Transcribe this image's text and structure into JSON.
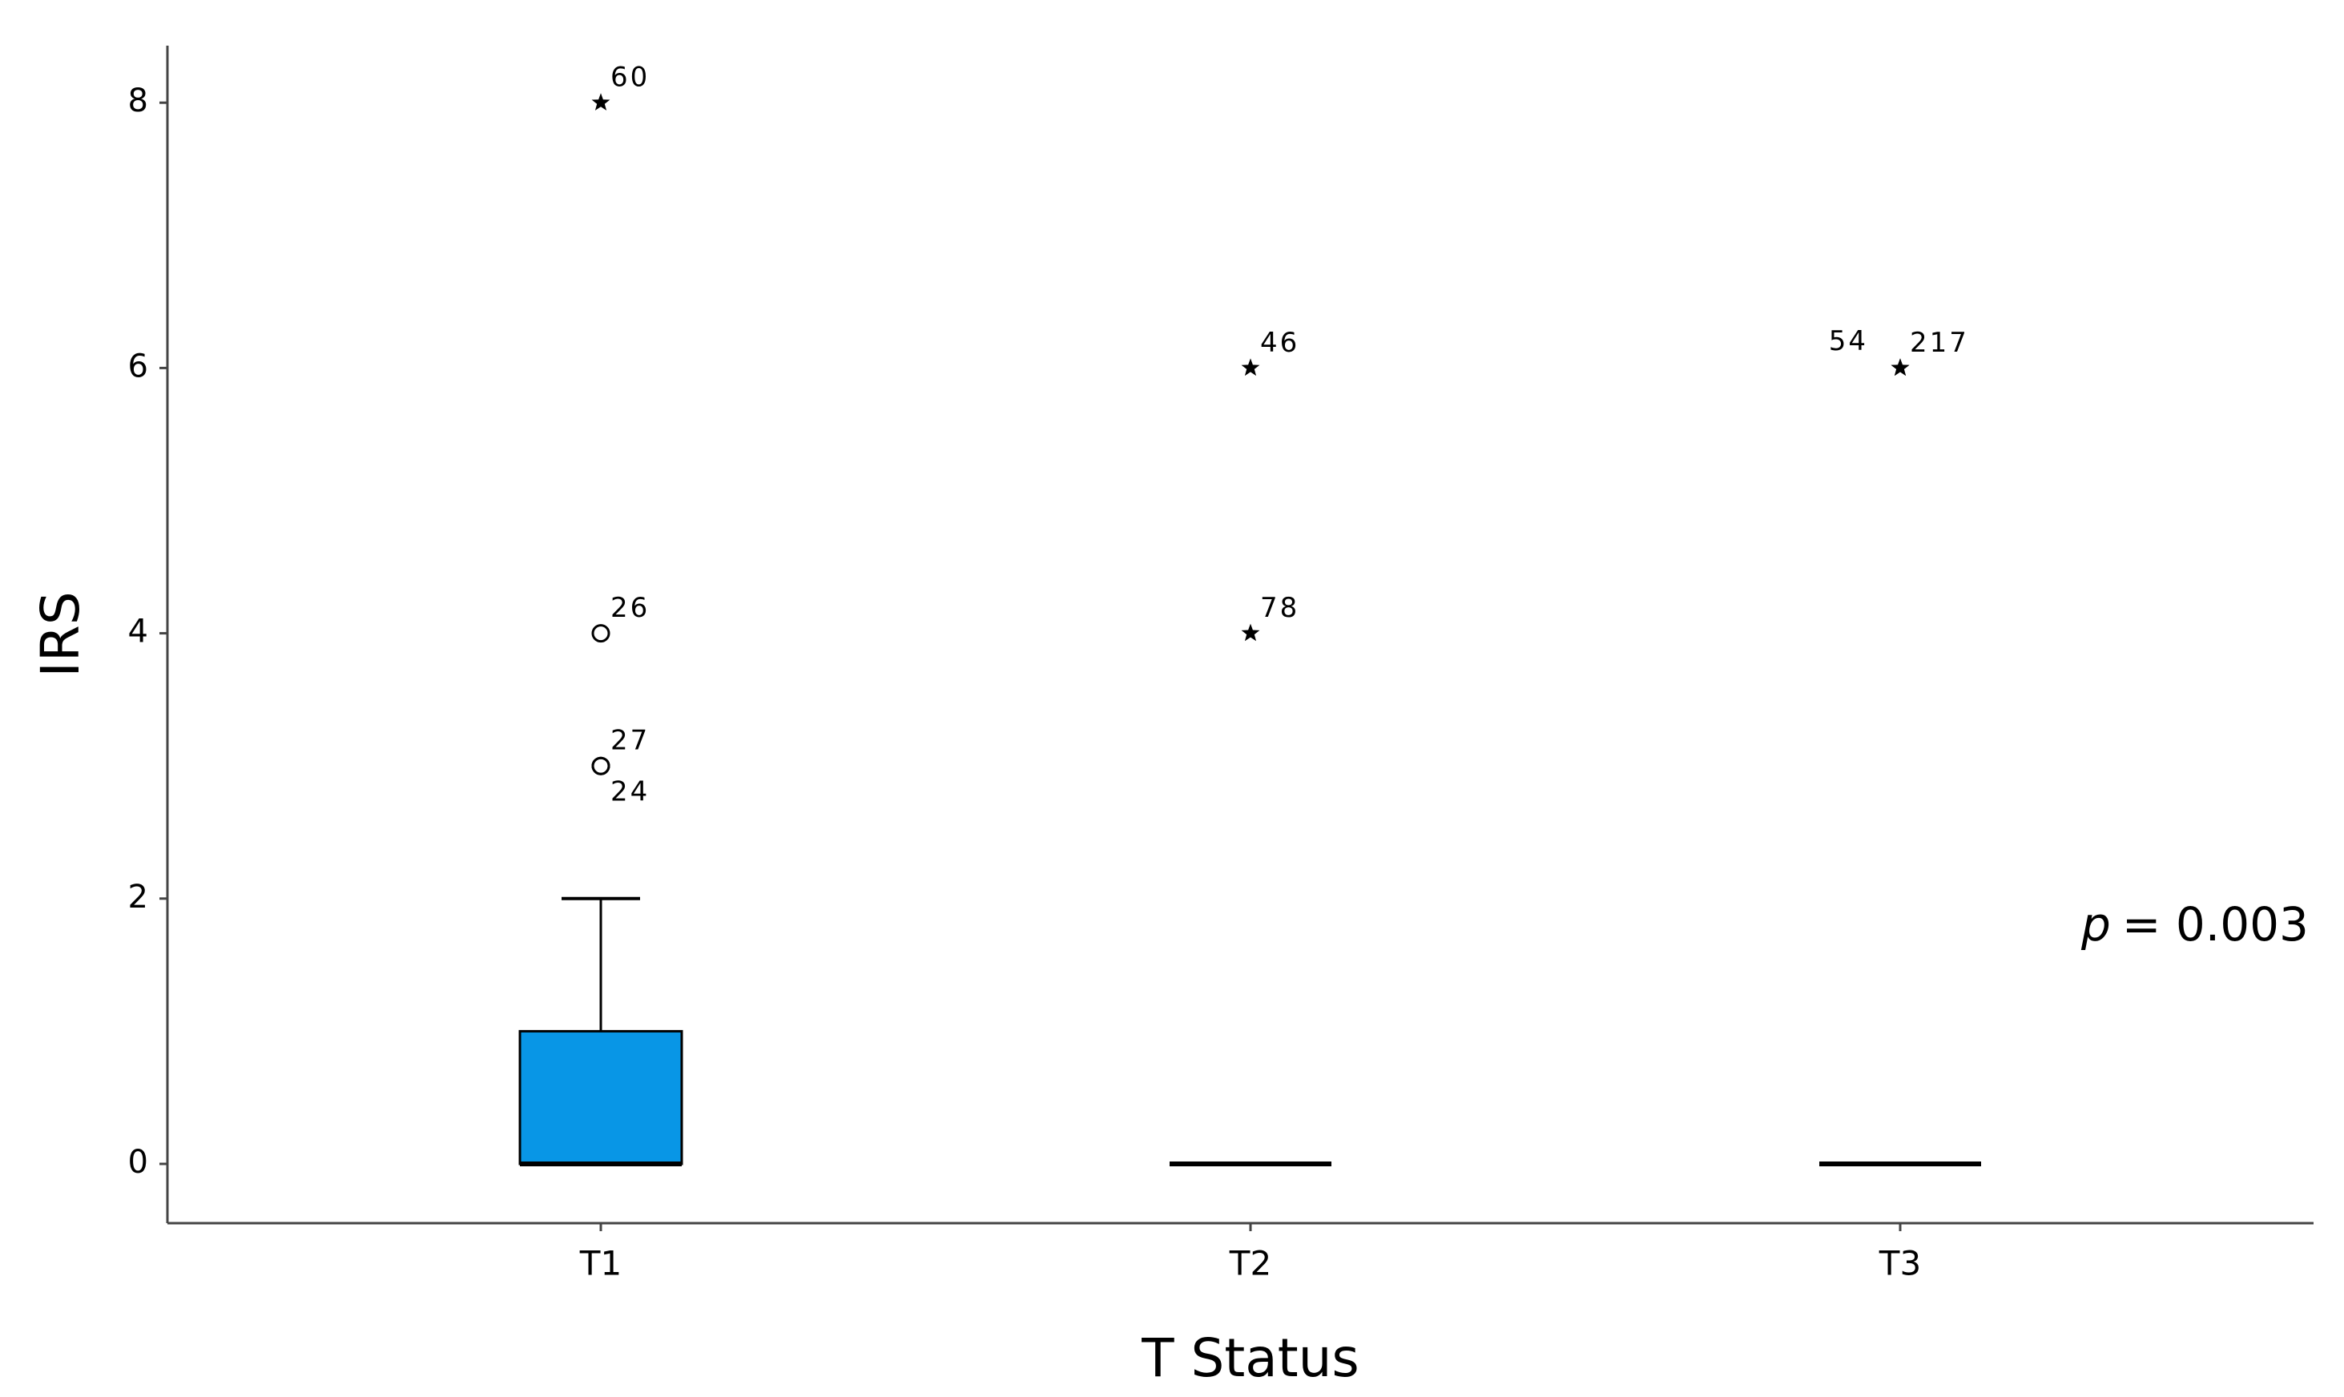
{
  "chart_data": {
    "type": "box",
    "x_label": "T Status",
    "y_label": "IRS",
    "categories": [
      "T1",
      "T2",
      "T3"
    ],
    "color": "#0896e6",
    "boxes": [
      {
        "min": 0,
        "q1": 0,
        "median": 0,
        "q3": 1,
        "max": 2,
        "outliers": [
          {
            "value": 8,
            "label": "60",
            "marker": "star"
          },
          {
            "value": 4,
            "label": "26",
            "marker": "circle"
          },
          {
            "value": 3,
            "label": "27",
            "marker": "circle"
          },
          {
            "value": 3,
            "label": "24",
            "marker": "circle"
          }
        ]
      },
      {
        "min": 0,
        "q1": 0,
        "median": 0,
        "q3": 0,
        "max": 0,
        "outliers": [
          {
            "value": 6,
            "label": "46",
            "marker": "star"
          },
          {
            "value": 4,
            "label": "78",
            "marker": "star"
          }
        ]
      },
      {
        "min": 0,
        "q1": 0,
        "median": 0,
        "q3": 0,
        "max": 0,
        "outliers": [
          {
            "value": 6,
            "label": "54",
            "marker": "star"
          },
          {
            "value": 6,
            "label": "217",
            "marker": "star"
          }
        ]
      }
    ],
    "ylim": [
      -0.447,
      8.43
    ],
    "yticks": [
      0,
      2,
      4,
      6,
      8
    ],
    "annotation": {
      "italic": "p",
      "text": "= 0.003"
    }
  }
}
